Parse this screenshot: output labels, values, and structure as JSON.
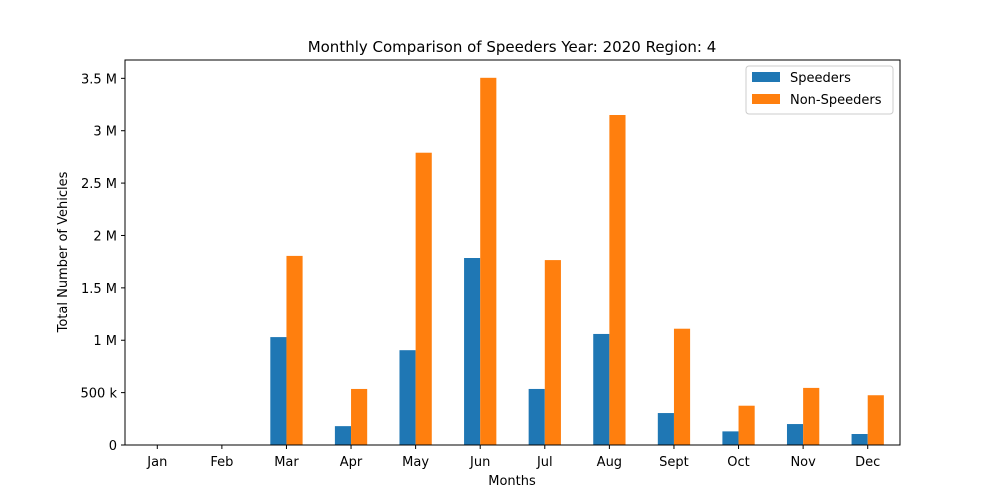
{
  "chart_data": {
    "type": "bar",
    "title": "Monthly Comparison of Speeders Year: 2020 Region: 4",
    "xlabel": "Months",
    "ylabel": "Total Number of Vehicles",
    "categories": [
      "Jan",
      "Feb",
      "Mar",
      "Apr",
      "May",
      "Jun",
      "Jul",
      "Aug",
      "Sept",
      "Oct",
      "Nov",
      "Dec"
    ],
    "series": [
      {
        "name": "Speeders",
        "color": "#1f77b4",
        "values": [
          0,
          0,
          1030000,
          180000,
          905000,
          1785000,
          535000,
          1060000,
          305000,
          130000,
          200000,
          105000
        ]
      },
      {
        "name": "Non-Speeders",
        "color": "#ff7f0e",
        "values": [
          0,
          0,
          1805000,
          535000,
          2790000,
          3505000,
          1765000,
          3150000,
          1110000,
          375000,
          545000,
          475000
        ]
      }
    ],
    "ylim": [
      0,
      3675000
    ],
    "yticks": [
      {
        "value": 0,
        "label": "0"
      },
      {
        "value": 500000,
        "label": "500 k"
      },
      {
        "value": 1000000,
        "label": "1 M"
      },
      {
        "value": 1500000,
        "label": "1.5 M"
      },
      {
        "value": 2000000,
        "label": "2 M"
      },
      {
        "value": 2500000,
        "label": "2.5 M"
      },
      {
        "value": 3000000,
        "label": "3 M"
      },
      {
        "value": 3500000,
        "label": "3.5 M"
      }
    ],
    "grid": false,
    "legend_position": "top-right"
  }
}
